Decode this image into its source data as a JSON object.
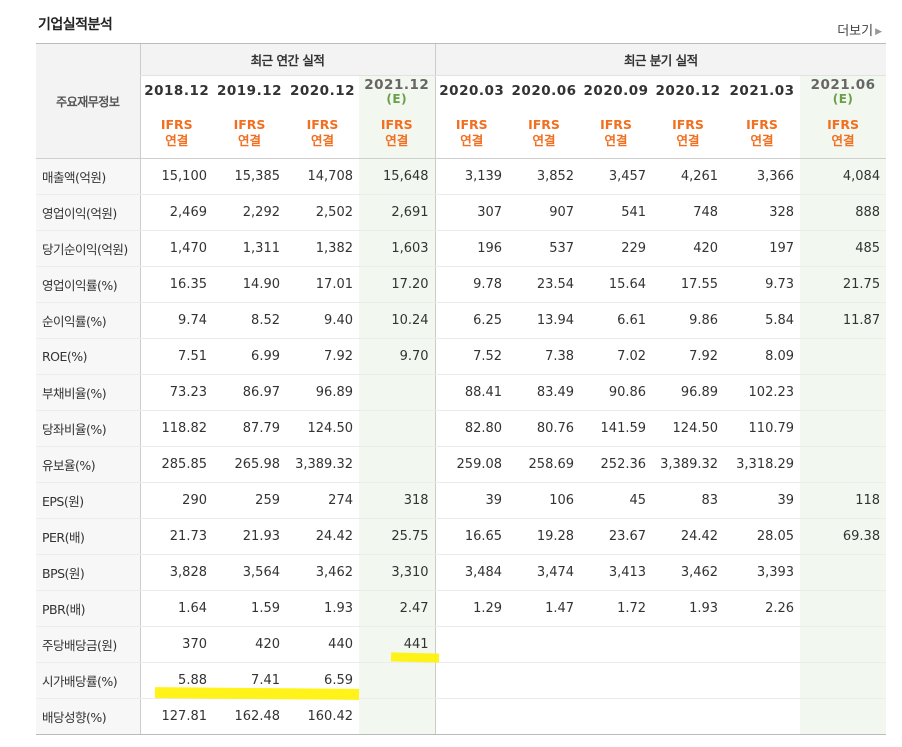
{
  "header": {
    "title": "기업실적분석",
    "more_label": "더보기",
    "row_label_header": "주요재무정보",
    "annual_group": "최근 연간 실적",
    "quarter_group": "최근 분기 실적",
    "annual_periods": [
      {
        "date": "2018.12",
        "est": ""
      },
      {
        "date": "2019.12",
        "est": ""
      },
      {
        "date": "2020.12",
        "est": ""
      },
      {
        "date": "2021.12",
        "est": "(E)"
      }
    ],
    "quarter_periods": [
      {
        "date": "2020.03",
        "est": ""
      },
      {
        "date": "2020.06",
        "est": ""
      },
      {
        "date": "2020.09",
        "est": ""
      },
      {
        "date": "2020.12",
        "est": ""
      },
      {
        "date": "2021.03",
        "est": ""
      },
      {
        "date": "2021.06",
        "est": "(E)"
      }
    ],
    "ifrs_line1": "IFRS",
    "ifrs_line2": "연결"
  },
  "rows": [
    {
      "label": "매출액(억원)",
      "values": [
        "15,100",
        "15,385",
        "14,708",
        "15,648",
        "3,139",
        "3,852",
        "3,457",
        "4,261",
        "3,366",
        "4,084"
      ]
    },
    {
      "label": "영업이익(억원)",
      "values": [
        "2,469",
        "2,292",
        "2,502",
        "2,691",
        "307",
        "907",
        "541",
        "748",
        "328",
        "888"
      ]
    },
    {
      "label": "당기순이익(억원)",
      "values": [
        "1,470",
        "1,311",
        "1,382",
        "1,603",
        "196",
        "537",
        "229",
        "420",
        "197",
        "485"
      ]
    },
    {
      "label": "영업이익률(%)",
      "values": [
        "16.35",
        "14.90",
        "17.01",
        "17.20",
        "9.78",
        "23.54",
        "15.64",
        "17.55",
        "9.73",
        "21.75"
      ]
    },
    {
      "label": "순이익률(%)",
      "values": [
        "9.74",
        "8.52",
        "9.40",
        "10.24",
        "6.25",
        "13.94",
        "6.61",
        "9.86",
        "5.84",
        "11.87"
      ]
    },
    {
      "label": "ROE(%)",
      "values": [
        "7.51",
        "6.99",
        "7.92",
        "9.70",
        "7.52",
        "7.38",
        "7.02",
        "7.92",
        "8.09",
        ""
      ]
    },
    {
      "label": "부채비율(%)",
      "values": [
        "73.23",
        "86.97",
        "96.89",
        "",
        "88.41",
        "83.49",
        "90.86",
        "96.89",
        "102.23",
        ""
      ]
    },
    {
      "label": "당좌비율(%)",
      "values": [
        "118.82",
        "87.79",
        "124.50",
        "",
        "82.80",
        "80.76",
        "141.59",
        "124.50",
        "110.79",
        ""
      ]
    },
    {
      "label": "유보율(%)",
      "values": [
        "285.85",
        "265.98",
        "3,389.32",
        "",
        "259.08",
        "258.69",
        "252.36",
        "3,389.32",
        "3,318.29",
        ""
      ]
    },
    {
      "label": "EPS(원)",
      "values": [
        "290",
        "259",
        "274",
        "318",
        "39",
        "106",
        "45",
        "83",
        "39",
        "118"
      ]
    },
    {
      "label": "PER(배)",
      "values": [
        "21.73",
        "21.93",
        "24.42",
        "25.75",
        "16.65",
        "19.28",
        "23.67",
        "24.42",
        "28.05",
        "69.38"
      ]
    },
    {
      "label": "BPS(원)",
      "values": [
        "3,828",
        "3,564",
        "3,462",
        "3,310",
        "3,484",
        "3,474",
        "3,413",
        "3,462",
        "3,393",
        ""
      ]
    },
    {
      "label": "PBR(배)",
      "values": [
        "1.64",
        "1.59",
        "1.93",
        "2.47",
        "1.29",
        "1.47",
        "1.72",
        "1.93",
        "2.26",
        ""
      ]
    },
    {
      "label": "주당배당금(원)",
      "values": [
        "370",
        "420",
        "440",
        "441",
        "",
        "",
        "",
        "",
        "",
        ""
      ]
    },
    {
      "label": "시가배당률(%)",
      "values": [
        "5.88",
        "7.41",
        "6.59",
        "",
        "",
        "",
        "",
        "",
        "",
        ""
      ]
    },
    {
      "label": "배당성향(%)",
      "values": [
        "127.81",
        "162.48",
        "160.42",
        "",
        "",
        "",
        "",
        "",
        "",
        ""
      ]
    }
  ],
  "colors": {
    "ifrs_orange": "#f16f21",
    "estimate_bg": "#f2f8ef",
    "estimate_text": "#6a9e4a",
    "highlight": "#fff200"
  }
}
